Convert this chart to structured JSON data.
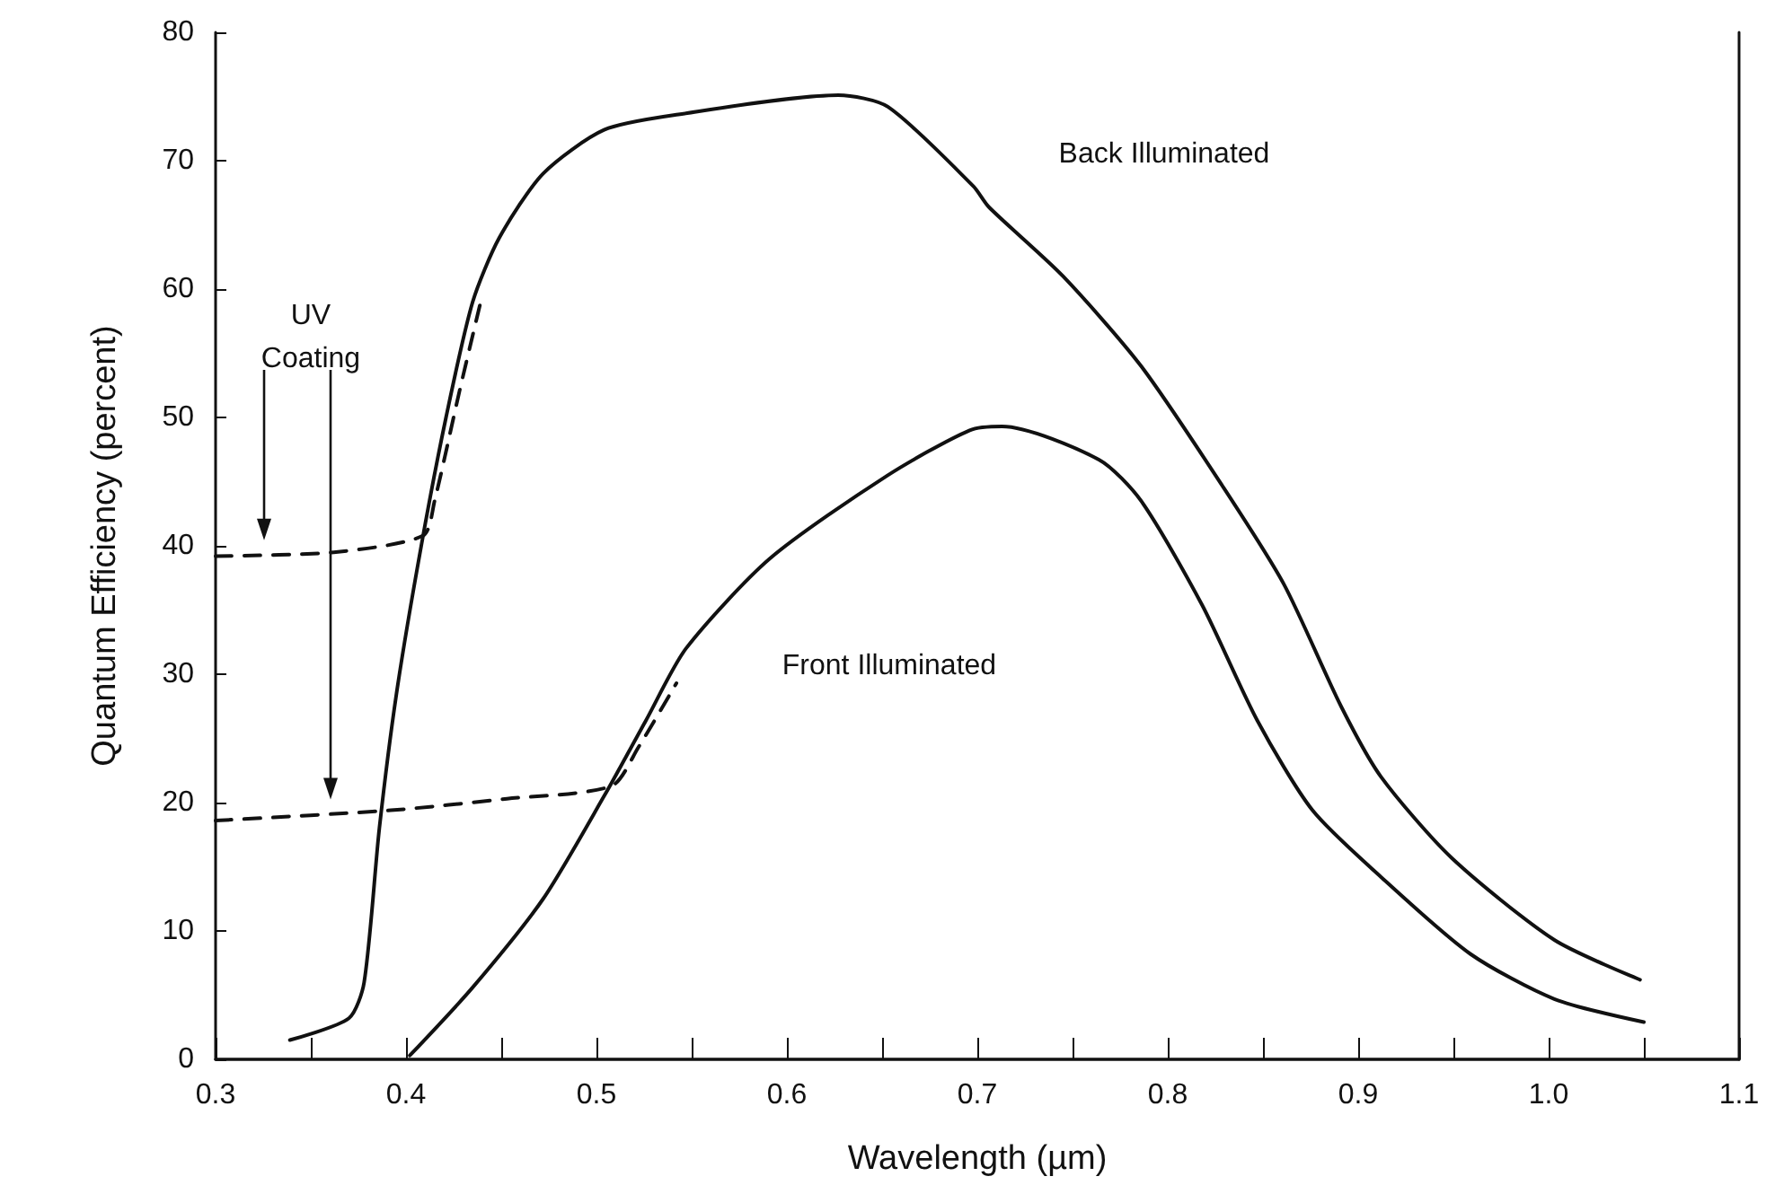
{
  "chart_data": {
    "type": "line",
    "xlabel": "Wavelength (µm)",
    "ylabel": "Quantum Efficiency (percent)",
    "xlim": [
      0.3,
      1.1
    ],
    "ylim": [
      0,
      80
    ],
    "xticks": [
      0.3,
      {
        "value": 0.35,
        "label": null
      },
      0.4,
      {
        "value": 0.45,
        "label": null
      },
      0.5,
      {
        "value": 0.55,
        "label": null
      },
      0.6,
      {
        "value": 0.65,
        "label": null
      },
      0.7,
      {
        "value": 0.75,
        "label": null
      },
      0.8,
      {
        "value": 0.85,
        "label": null
      },
      0.9,
      {
        "value": 0.95,
        "label": null
      },
      {
        "value": 1.0,
        "label": "1.0"
      },
      {
        "value": 1.05,
        "label": null
      },
      1.1
    ],
    "yticks": [
      0,
      10,
      20,
      30,
      40,
      50,
      60,
      70,
      80
    ],
    "grid": false,
    "marker": "none",
    "line_style": "solid",
    "series": [
      {
        "color": "#111111",
        "x": [
          0.339,
          0.37,
          0.378,
          0.386,
          0.395,
          0.408,
          0.421,
          0.435,
          0.449,
          0.472,
          0.504,
          0.543,
          0.627,
          0.653,
          0.698,
          0.706,
          0.745,
          0.786,
          0.829,
          0.861,
          0.891,
          0.912,
          0.949,
          1.003,
          1.048
        ],
        "values": [
          1.5,
          3.2,
          6,
          18,
          28.5,
          40,
          50,
          59,
          64,
          69,
          72.4,
          73.6,
          75.1,
          74.2,
          68,
          66.4,
          61,
          54,
          44.6,
          37,
          27.5,
          22,
          15.7,
          9.3,
          6.2
        ]
      },
      {
        "color": "#111111",
        "x": [
          0.402,
          0.435,
          0.472,
          0.504,
          0.526,
          0.547,
          0.591,
          0.653,
          0.696,
          0.713,
          0.764,
          0.786,
          0.818,
          0.847,
          0.876,
          0.912,
          0.959,
          1.003,
          1.05
        ],
        "values": [
          0.3,
          5.6,
          12.5,
          20.5,
          26.4,
          32,
          39,
          45.5,
          49,
          49.3,
          46.7,
          43.5,
          35.4,
          26.4,
          19.4,
          14.2,
          8.2,
          4.7,
          2.9
        ]
      },
      {
        "color": "#111111",
        "line_style": "dashed",
        "x": [
          0.3,
          0.362,
          0.409,
          0.415,
          0.428,
          0.44
        ],
        "values": [
          39.2,
          39.5,
          40.8,
          43.5,
          52,
          59.5
        ]
      },
      {
        "color": "#111111",
        "line_style": "dashed",
        "x": [
          0.3,
          0.392,
          0.453,
          0.508,
          0.522,
          0.542
        ],
        "values": [
          18.6,
          19.4,
          20.3,
          21.3,
          24.3,
          29.3
        ]
      }
    ],
    "annotations": [
      "Back Illuminated",
      "Front Illuminated",
      "UV\nCoating"
    ]
  }
}
